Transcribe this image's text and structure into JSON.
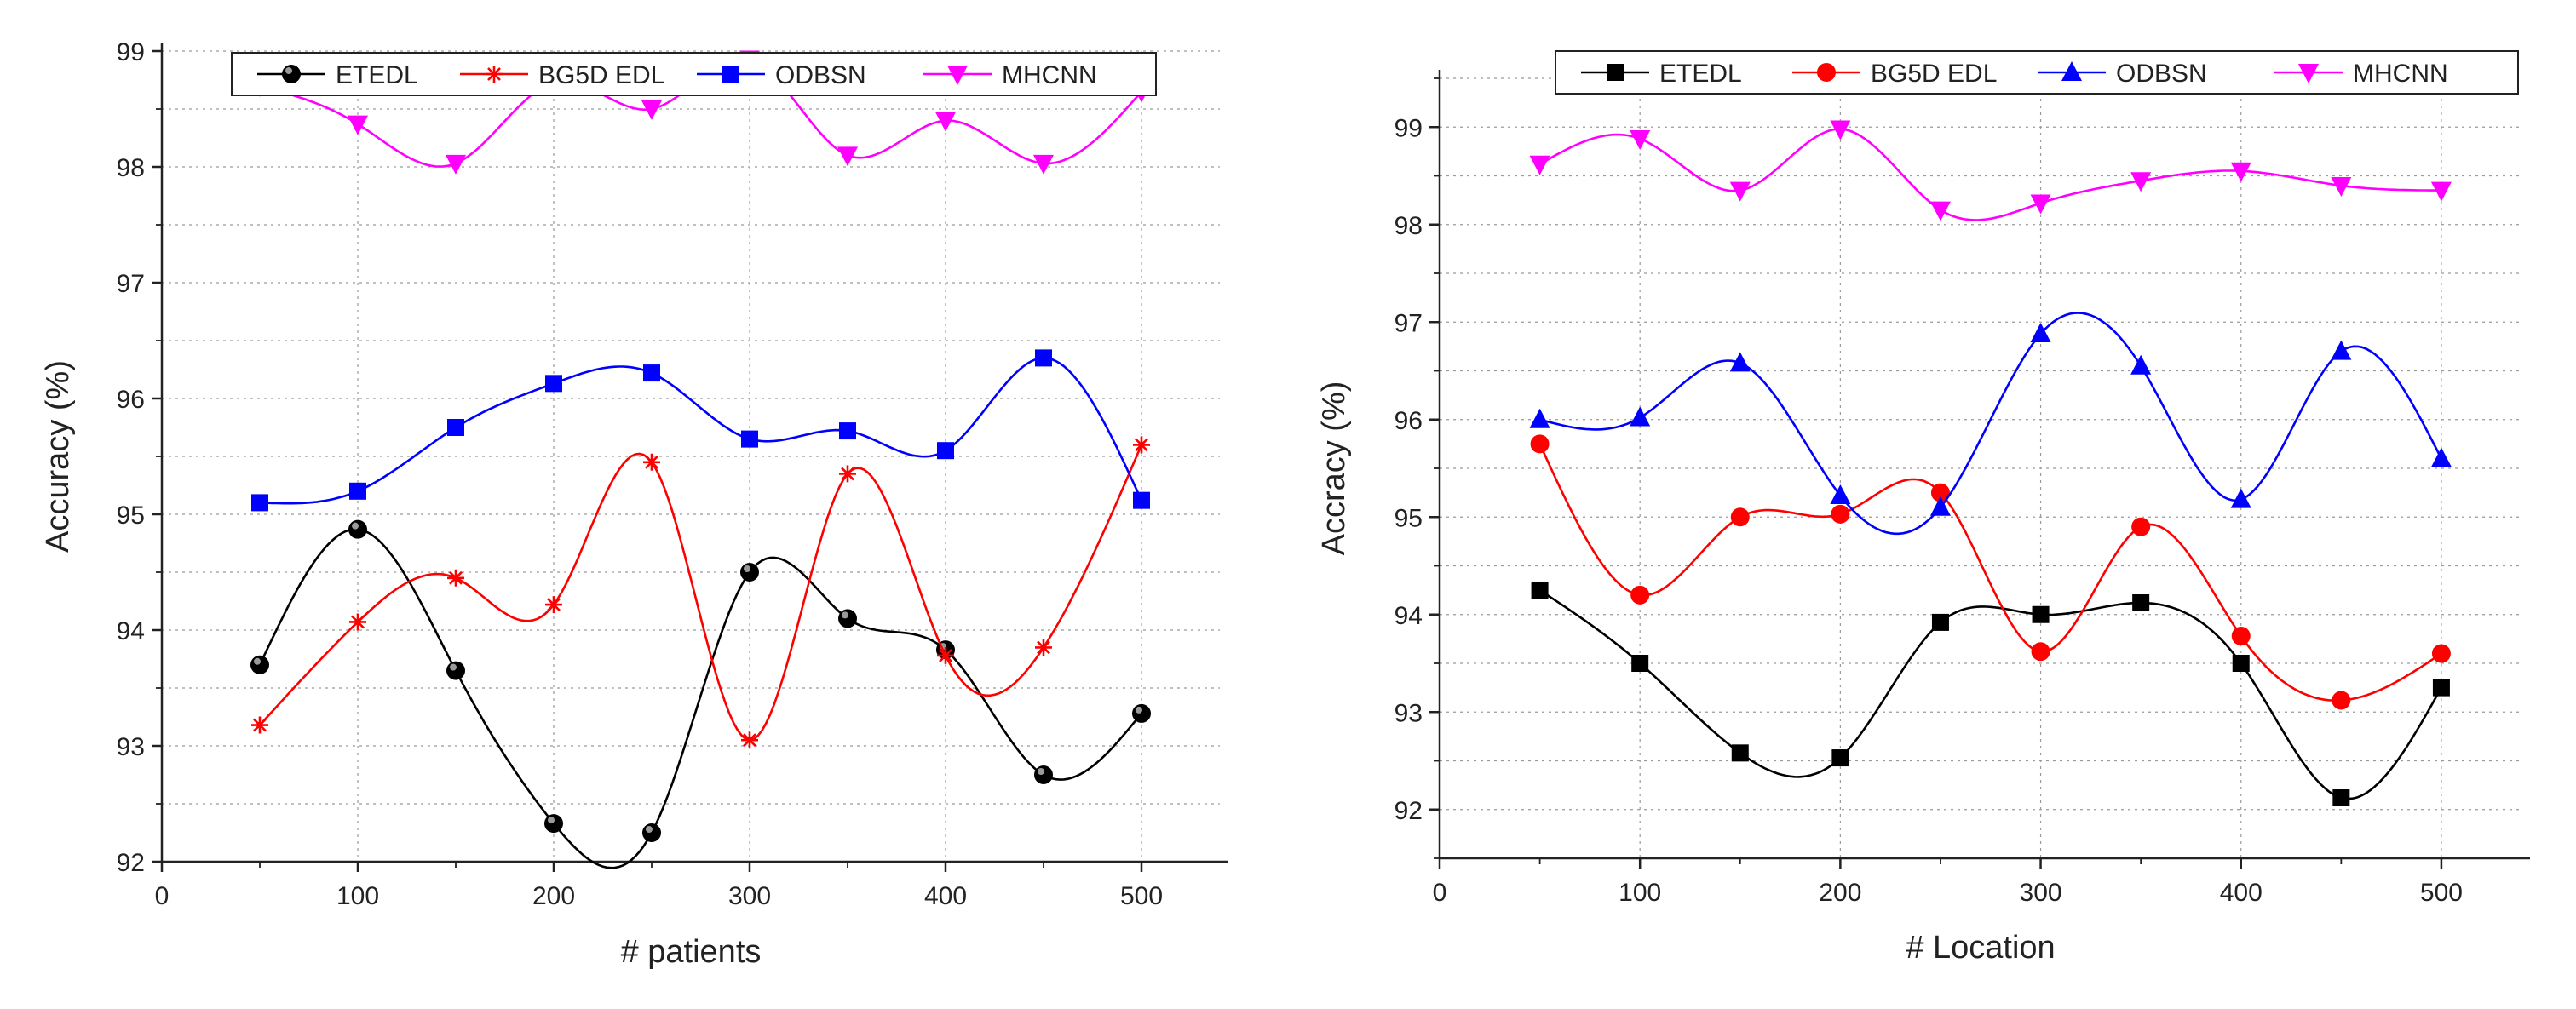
{
  "chart_data": [
    {
      "type": "line",
      "xlabel": "# patients",
      "ylabel": "Accuracy (%)",
      "xlim": [
        0,
        540
      ],
      "ylim": [
        92,
        99
      ],
      "x_ticks": [
        0,
        100,
        200,
        300,
        400,
        500
      ],
      "y_ticks": [
        92,
        93,
        94,
        95,
        96,
        97,
        98,
        99
      ],
      "grid": true,
      "legend_position": "top",
      "x": [
        50,
        100,
        150,
        200,
        250,
        300,
        350,
        400,
        450,
        500
      ],
      "series": [
        {
          "name": "ETEDL",
          "color": "#000000",
          "marker": "sphere",
          "values": [
            93.7,
            94.87,
            93.65,
            92.33,
            92.25,
            94.5,
            94.1,
            93.83,
            92.75,
            93.28
          ]
        },
        {
          "name": "BG5D EDL",
          "color": "#ff0000",
          "marker": "star",
          "values": [
            93.18,
            94.07,
            94.45,
            94.22,
            95.45,
            93.05,
            95.35,
            93.78,
            93.85,
            95.6
          ]
        },
        {
          "name": "ODBSN",
          "color": "#0000ff",
          "marker": "square",
          "values": [
            95.1,
            95.2,
            95.75,
            96.13,
            96.22,
            95.65,
            95.72,
            95.55,
            96.35,
            95.12
          ]
        },
        {
          "name": "MHCNN",
          "color": "#ff00ff",
          "marker": "triangle-down",
          "values": [
            98.7,
            98.37,
            98.03,
            98.73,
            98.5,
            98.93,
            98.1,
            98.4,
            98.03,
            98.65
          ]
        }
      ]
    },
    {
      "type": "line",
      "xlabel": "# Location",
      "ylabel": "Accracy (%)",
      "xlim": [
        0,
        540
      ],
      "ylim": [
        91.5,
        99.5
      ],
      "x_ticks": [
        0,
        100,
        200,
        300,
        400,
        500
      ],
      "y_ticks": [
        92,
        93,
        94,
        95,
        96,
        97,
        98,
        99
      ],
      "grid": true,
      "legend_position": "top",
      "x": [
        50,
        100,
        150,
        200,
        250,
        300,
        350,
        400,
        450,
        500
      ],
      "series": [
        {
          "name": "ETEDL",
          "color": "#000000",
          "marker": "square",
          "values": [
            94.25,
            93.5,
            92.58,
            92.53,
            93.92,
            94.0,
            94.12,
            93.5,
            92.12,
            93.25
          ]
        },
        {
          "name": "BG5D EDL",
          "color": "#ff0000",
          "marker": "circle",
          "values": [
            95.75,
            94.2,
            95.0,
            95.03,
            95.25,
            93.62,
            94.9,
            93.78,
            93.12,
            93.6
          ]
        },
        {
          "name": "ODBSN",
          "color": "#0000ff",
          "marker": "triangle-up",
          "values": [
            96.0,
            96.02,
            96.58,
            95.22,
            95.1,
            96.88,
            96.55,
            95.18,
            96.7,
            95.6
          ]
        },
        {
          "name": "MHCNN",
          "color": "#ff00ff",
          "marker": "triangle-down",
          "values": [
            98.62,
            98.88,
            98.35,
            98.98,
            98.15,
            98.22,
            98.45,
            98.55,
            98.4,
            98.35
          ]
        }
      ]
    }
  ]
}
